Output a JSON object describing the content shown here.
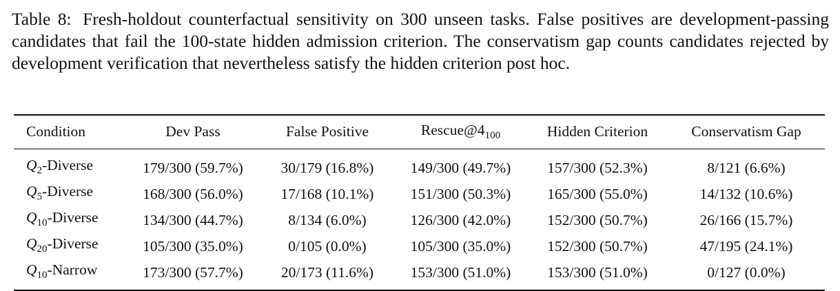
{
  "caption": {
    "label": "Table 8:",
    "text": "Fresh-holdout counterfactual sensitivity on 300 unseen tasks. False positives are development-passing candidates that fail the 100-state hidden admission criterion. The conservatism gap counts candidates rejected by development verification that nevertheless satisfy the hidden criterion post hoc."
  },
  "table": {
    "headers": {
      "condition": "Condition",
      "dev_pass": "Dev Pass",
      "false_positive": "False Positive",
      "rescue_base": "Rescue@4",
      "rescue_sub": "100",
      "hidden_criterion": "Hidden Criterion",
      "conservatism_gap": "Conservatism Gap"
    },
    "rows": [
      {
        "q": "Q",
        "sub": "2",
        "name": "-Diverse",
        "dev_pass": "179/300 (59.7%)",
        "false_positive": "30/179 (16.8%)",
        "rescue": "149/300 (49.7%)",
        "hidden": "157/300 (52.3%)",
        "gap": "8/121 (6.6%)"
      },
      {
        "q": "Q",
        "sub": "5",
        "name": "-Diverse",
        "dev_pass": "168/300 (56.0%)",
        "false_positive": "17/168 (10.1%)",
        "rescue": "151/300 (50.3%)",
        "hidden": "165/300 (55.0%)",
        "gap": "14/132 (10.6%)"
      },
      {
        "q": "Q",
        "sub": "10",
        "name": "-Diverse",
        "dev_pass": "134/300 (44.7%)",
        "false_positive": "8/134 (6.0%)",
        "rescue": "126/300 (42.0%)",
        "hidden": "152/300 (50.7%)",
        "gap": "26/166 (15.7%)"
      },
      {
        "q": "Q",
        "sub": "20",
        "name": "-Diverse",
        "dev_pass": "105/300 (35.0%)",
        "false_positive": "0/105 (0.0%)",
        "rescue": "105/300 (35.0%)",
        "hidden": "152/300 (50.7%)",
        "gap": "47/195 (24.1%)"
      },
      {
        "q": "Q",
        "sub": "10",
        "name": "-Narrow",
        "dev_pass": "173/300 (57.7%)",
        "false_positive": "20/173 (11.6%)",
        "rescue": "153/300 (51.0%)",
        "hidden": "153/300 (51.0%)",
        "gap": "0/127 (0.0%)"
      }
    ]
  }
}
